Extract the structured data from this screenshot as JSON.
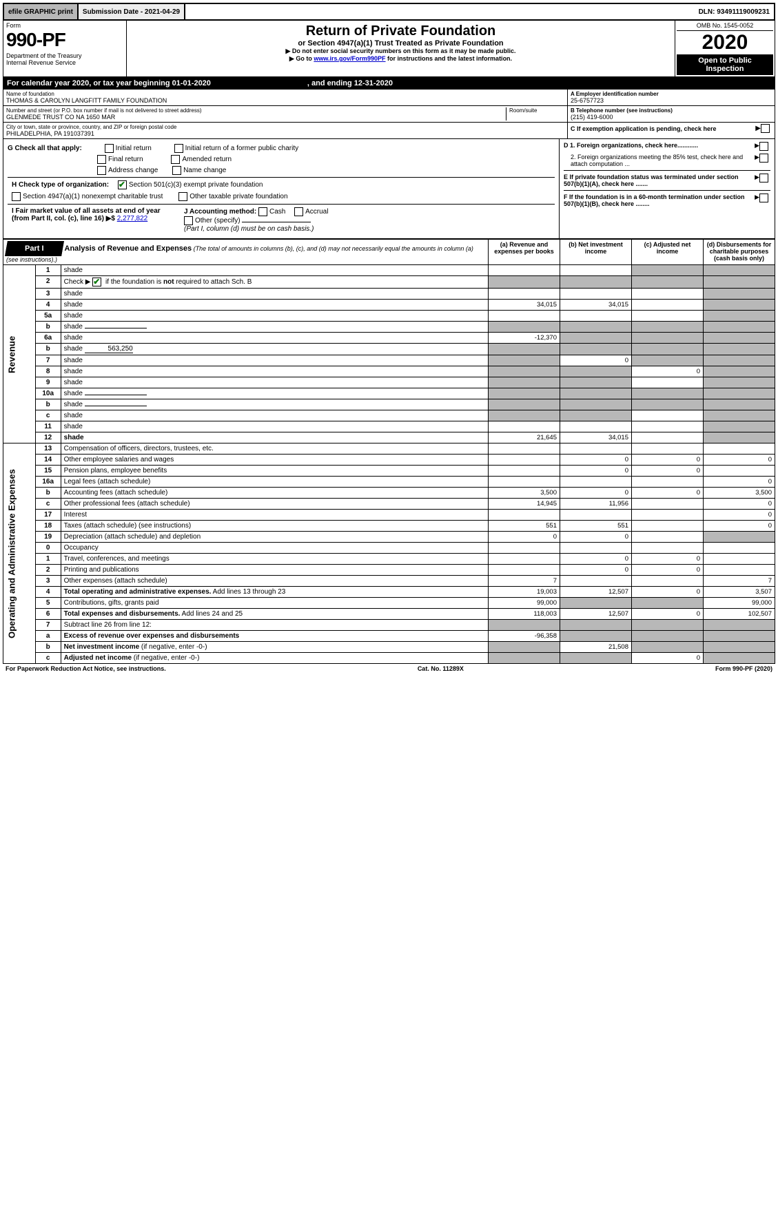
{
  "top": {
    "efile": "efile GRAPHIC print",
    "subdate_label": "Submission Date - 2021-04-29",
    "dln": "DLN: 93491119009231"
  },
  "header": {
    "form": "Form",
    "form_num": "990-PF",
    "dept": "Department of the Treasury\nInternal Revenue Service",
    "title": "Return of Private Foundation",
    "subtitle": "or Section 4947(a)(1) Trust Treated as Private Foundation",
    "instr1": "▶ Do not enter social security numbers on this form as it may be made public.",
    "instr2_pre": "▶ Go to ",
    "instr2_link": "www.irs.gov/Form990PF",
    "instr2_post": " for instructions and the latest information.",
    "omb": "OMB No. 1545-0052",
    "year": "2020",
    "open": "Open to Public Inspection"
  },
  "cal": {
    "pre": "For calendar year 2020, or tax year beginning 01-01-2020",
    "end": ", and ending 12-31-2020"
  },
  "info": {
    "name_lbl": "Name of foundation",
    "name": "THOMAS & CAROLYN LANGFITT FAMILY FOUNDATION",
    "addr_lbl": "Number and street (or P.O. box number if mail is not delivered to street address)",
    "room_lbl": "Room/suite",
    "addr": "GLENMEDE TRUST CO NA 1650 MAR",
    "city_lbl": "City or town, state or province, country, and ZIP or foreign postal code",
    "city": "PHILADELPHIA, PA  191037391",
    "ein_lbl": "A Employer identification number",
    "ein": "25-6757723",
    "tel_lbl": "B Telephone number (see instructions)",
    "tel": "(215) 419-6000",
    "c_lbl": "C If exemption application is pending, check here"
  },
  "g": {
    "label": "G Check all that apply:",
    "initial": "Initial return",
    "initial_former": "Initial return of a former public charity",
    "final": "Final return",
    "amended": "Amended return",
    "addr_change": "Address change",
    "name_change": "Name change"
  },
  "h": {
    "label": "H Check type of organization:",
    "opt1": "Section 501(c)(3) exempt private foundation",
    "opt2": "Section 4947(a)(1) nonexempt charitable trust",
    "opt3": "Other taxable private foundation"
  },
  "i": {
    "label": "I Fair market value of all assets at end of year (from Part II, col. (c), line 16) ▶$ ",
    "val": "2,277,822"
  },
  "j": {
    "label": "J Accounting method:",
    "cash": "Cash",
    "accrual": "Accrual",
    "other": "Other (specify)",
    "note": "(Part I, column (d) must be on cash basis.)"
  },
  "d": {
    "d1": "D 1. Foreign organizations, check here............",
    "d2": "2. Foreign organizations meeting the 85% test, check here and attach computation ...",
    "e": "E  If private foundation status was terminated under section 507(b)(1)(A), check here .......",
    "f": "F  If the foundation is in a 60-month termination under section 507(b)(1)(B), check here ........"
  },
  "part1": {
    "label": "Part I",
    "title": "Analysis of Revenue and Expenses",
    "note": "(The total of amounts in columns (b), (c), and (d) may not necessarily equal the amounts in column (a) (see instructions).)",
    "col_a": "(a) Revenue and expenses per books",
    "col_b": "(b) Net investment income",
    "col_c": "(c) Adjusted net income",
    "col_d": "(d) Disbursements for charitable purposes (cash basis only)"
  },
  "sections": {
    "revenue": "Revenue",
    "expenses": "Operating and Administrative Expenses"
  },
  "rows": [
    {
      "n": "1",
      "d": "shade",
      "a": "",
      "b": "",
      "c": "shade"
    },
    {
      "n": "2",
      "d": "shade",
      "a": "shade",
      "b": "shade",
      "c": "shade",
      "checked": true
    },
    {
      "n": "3",
      "d": "shade",
      "a": "",
      "b": "",
      "c": ""
    },
    {
      "n": "4",
      "d": "shade",
      "a": "34,015",
      "b": "34,015",
      "c": ""
    },
    {
      "n": "5a",
      "d": "shade",
      "a": "",
      "b": "",
      "c": ""
    },
    {
      "n": "b",
      "d": "shade",
      "a": "shade",
      "b": "shade",
      "c": "shade",
      "underline": true
    },
    {
      "n": "6a",
      "d": "shade",
      "a": "-12,370",
      "b": "shade",
      "c": "shade"
    },
    {
      "n": "b",
      "d": "shade",
      "a": "shade",
      "b": "shade",
      "c": "shade",
      "inline_val": "563,250"
    },
    {
      "n": "7",
      "d": "shade",
      "a": "shade",
      "b": "0",
      "c": "shade"
    },
    {
      "n": "8",
      "d": "shade",
      "a": "shade",
      "b": "shade",
      "c": "0"
    },
    {
      "n": "9",
      "d": "shade",
      "a": "shade",
      "b": "shade",
      "c": ""
    },
    {
      "n": "10a",
      "d": "shade",
      "a": "shade",
      "b": "shade",
      "c": "shade",
      "underline": true
    },
    {
      "n": "b",
      "d": "shade",
      "a": "shade",
      "b": "shade",
      "c": "shade",
      "underline": true
    },
    {
      "n": "c",
      "d": "shade",
      "a": "shade",
      "b": "shade",
      "c": ""
    },
    {
      "n": "11",
      "d": "shade",
      "a": "",
      "b": "",
      "c": ""
    },
    {
      "n": "12",
      "d": "shade",
      "a": "21,645",
      "b": "34,015",
      "c": "",
      "bold": true
    }
  ],
  "exp_rows": [
    {
      "n": "13",
      "d": "",
      "a": "",
      "b": "",
      "c": ""
    },
    {
      "n": "14",
      "d": "0",
      "a": "",
      "b": "0",
      "c": "0"
    },
    {
      "n": "15",
      "d": "",
      "a": "",
      "b": "0",
      "c": "0"
    },
    {
      "n": "16a",
      "d": "0",
      "a": "",
      "b": "",
      "c": ""
    },
    {
      "n": "b",
      "d": "3,500",
      "a": "3,500",
      "b": "0",
      "c": "0"
    },
    {
      "n": "c",
      "d": "0",
      "a": "14,945",
      "b": "11,956",
      "c": ""
    },
    {
      "n": "17",
      "d": "0",
      "a": "",
      "b": "",
      "c": ""
    },
    {
      "n": "18",
      "d": "0",
      "a": "551",
      "b": "551",
      "c": ""
    },
    {
      "n": "19",
      "d": "shade",
      "a": "0",
      "b": "0",
      "c": ""
    },
    {
      "n": "20",
      "d": "",
      "a": "",
      "b": "",
      "c": ""
    },
    {
      "n": "21",
      "d": "",
      "a": "",
      "b": "0",
      "c": "0"
    },
    {
      "n": "22",
      "d": "",
      "a": "",
      "b": "0",
      "c": "0"
    },
    {
      "n": "23",
      "d": "7",
      "a": "7",
      "b": "",
      "c": ""
    },
    {
      "n": "24",
      "d": "3,507",
      "a": "19,003",
      "b": "12,507",
      "c": "0",
      "bold": true
    },
    {
      "n": "25",
      "d": "99,000",
      "a": "99,000",
      "b": "shade",
      "c": "shade"
    },
    {
      "n": "26",
      "d": "102,507",
      "a": "118,003",
      "b": "12,507",
      "c": "0",
      "bold": true
    },
    {
      "n": "27",
      "d": "shade",
      "a": "shade",
      "b": "shade",
      "c": "shade"
    },
    {
      "n": "a",
      "d": "shade",
      "a": "-96,358",
      "b": "shade",
      "c": "shade",
      "bold": true
    },
    {
      "n": "b",
      "d": "shade",
      "a": "shade",
      "b": "21,508",
      "c": "shade",
      "bold": true
    },
    {
      "n": "c",
      "d": "shade",
      "a": "shade",
      "b": "shade",
      "c": "0",
      "bold": true
    }
  ],
  "footer": {
    "left": "For Paperwork Reduction Act Notice, see instructions.",
    "mid": "Cat. No. 11289X",
    "right": "Form 990-PF (2020)"
  }
}
